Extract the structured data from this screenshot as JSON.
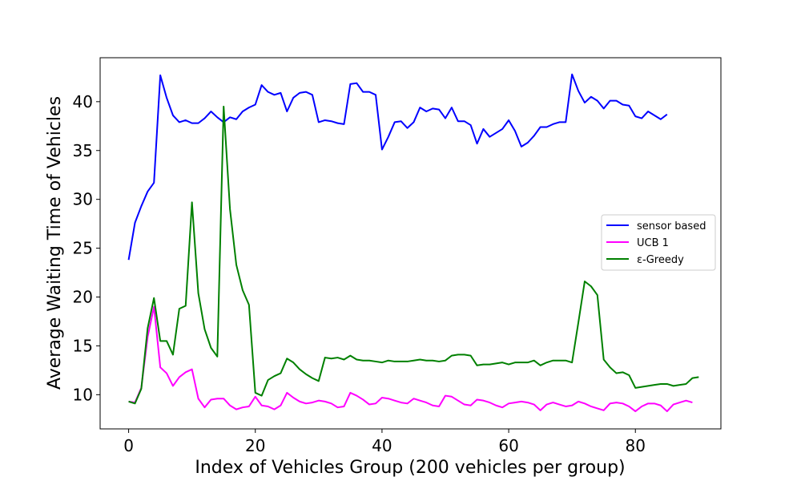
{
  "chart_data": {
    "type": "line",
    "title": "",
    "xlabel": "Index of Vehicles Group (200 vehicles per group)",
    "ylabel": "Average Waiting Time of Vehicles",
    "xlim": [
      -4.5,
      93.5
    ],
    "ylim": [
      6.5,
      44.5
    ],
    "xticks": [
      0,
      20,
      40,
      60,
      80
    ],
    "yticks": [
      10,
      15,
      20,
      25,
      30,
      35,
      40
    ],
    "grid": false,
    "legend": {
      "position": "right"
    },
    "series": [
      {
        "name": "sensor based",
        "color": "#0000ff",
        "x_start": 0,
        "values": [
          23.8,
          27.6,
          29.3,
          30.8,
          31.7,
          42.7,
          40.4,
          38.6,
          37.9,
          38.1,
          37.8,
          37.8,
          38.3,
          39.0,
          38.4,
          37.9,
          38.4,
          38.2,
          39.0,
          39.4,
          39.7,
          41.7,
          41.0,
          40.7,
          40.9,
          39.0,
          40.4,
          40.9,
          41.0,
          40.7,
          37.9,
          38.1,
          38.0,
          37.8,
          37.7,
          41.8,
          41.9,
          41.0,
          41.0,
          40.7,
          35.1,
          36.4,
          37.9,
          38.0,
          37.3,
          37.9,
          39.4,
          39.0,
          39.3,
          39.2,
          38.3,
          39.4,
          38.0,
          38.0,
          37.6,
          35.7,
          37.2,
          36.4,
          36.8,
          37.2,
          38.1,
          37.0,
          35.4,
          35.8,
          36.5,
          37.4,
          37.4,
          37.7,
          37.9,
          37.9,
          42.8,
          41.1,
          39.9,
          40.5,
          40.1,
          39.3,
          40.1,
          40.1,
          39.7,
          39.6,
          38.5,
          38.3,
          39.0,
          38.6,
          38.2,
          38.7
        ]
      },
      {
        "name": "UCB 1",
        "color": "#ff00ff",
        "x_start": 0,
        "values": [
          9.3,
          9.2,
          10.7,
          15.9,
          19.0,
          12.8,
          12.2,
          10.9,
          11.8,
          12.3,
          12.6,
          9.6,
          8.7,
          9.5,
          9.6,
          9.6,
          8.9,
          8.5,
          8.7,
          8.8,
          9.8,
          8.9,
          8.8,
          8.5,
          8.9,
          10.2,
          9.7,
          9.3,
          9.1,
          9.2,
          9.4,
          9.3,
          9.1,
          8.7,
          8.8,
          10.2,
          9.9,
          9.5,
          9.0,
          9.1,
          9.7,
          9.6,
          9.4,
          9.2,
          9.1,
          9.6,
          9.4,
          9.2,
          8.9,
          8.8,
          9.9,
          9.8,
          9.4,
          9.0,
          8.9,
          9.5,
          9.4,
          9.2,
          8.9,
          8.7,
          9.1,
          9.2,
          9.3,
          9.2,
          9.0,
          8.4,
          9.0,
          9.2,
          9.0,
          8.8,
          8.9,
          9.3,
          9.1,
          8.8,
          8.6,
          8.4,
          9.1,
          9.2,
          9.1,
          8.8,
          8.3,
          8.8,
          9.1,
          9.1,
          8.9,
          8.3,
          9.0,
          9.2,
          9.4,
          9.2
        ]
      },
      {
        "name": "ε-Greedy",
        "color": "#008000",
        "x_start": 0,
        "values": [
          9.3,
          9.1,
          10.6,
          16.8,
          19.9,
          15.5,
          15.5,
          14.1,
          18.8,
          19.1,
          29.7,
          20.4,
          16.7,
          14.8,
          13.9,
          39.5,
          29.0,
          23.3,
          20.7,
          19.2,
          10.2,
          9.9,
          11.5,
          11.9,
          12.2,
          13.7,
          13.3,
          12.6,
          12.1,
          11.7,
          11.4,
          13.8,
          13.7,
          13.8,
          13.6,
          14.0,
          13.6,
          13.5,
          13.5,
          13.4,
          13.3,
          13.5,
          13.4,
          13.4,
          13.4,
          13.5,
          13.6,
          13.5,
          13.5,
          13.4,
          13.5,
          14.0,
          14.1,
          14.1,
          14.0,
          13.0,
          13.1,
          13.1,
          13.2,
          13.3,
          13.1,
          13.3,
          13.3,
          13.3,
          13.5,
          13.0,
          13.3,
          13.5,
          13.5,
          13.5,
          13.3,
          17.4,
          21.6,
          21.1,
          20.2,
          13.6,
          12.8,
          12.2,
          12.3,
          12.0,
          10.7,
          10.8,
          10.9,
          11.0,
          11.1,
          11.1,
          10.9,
          11.0,
          11.1,
          11.7,
          11.8
        ]
      }
    ]
  }
}
